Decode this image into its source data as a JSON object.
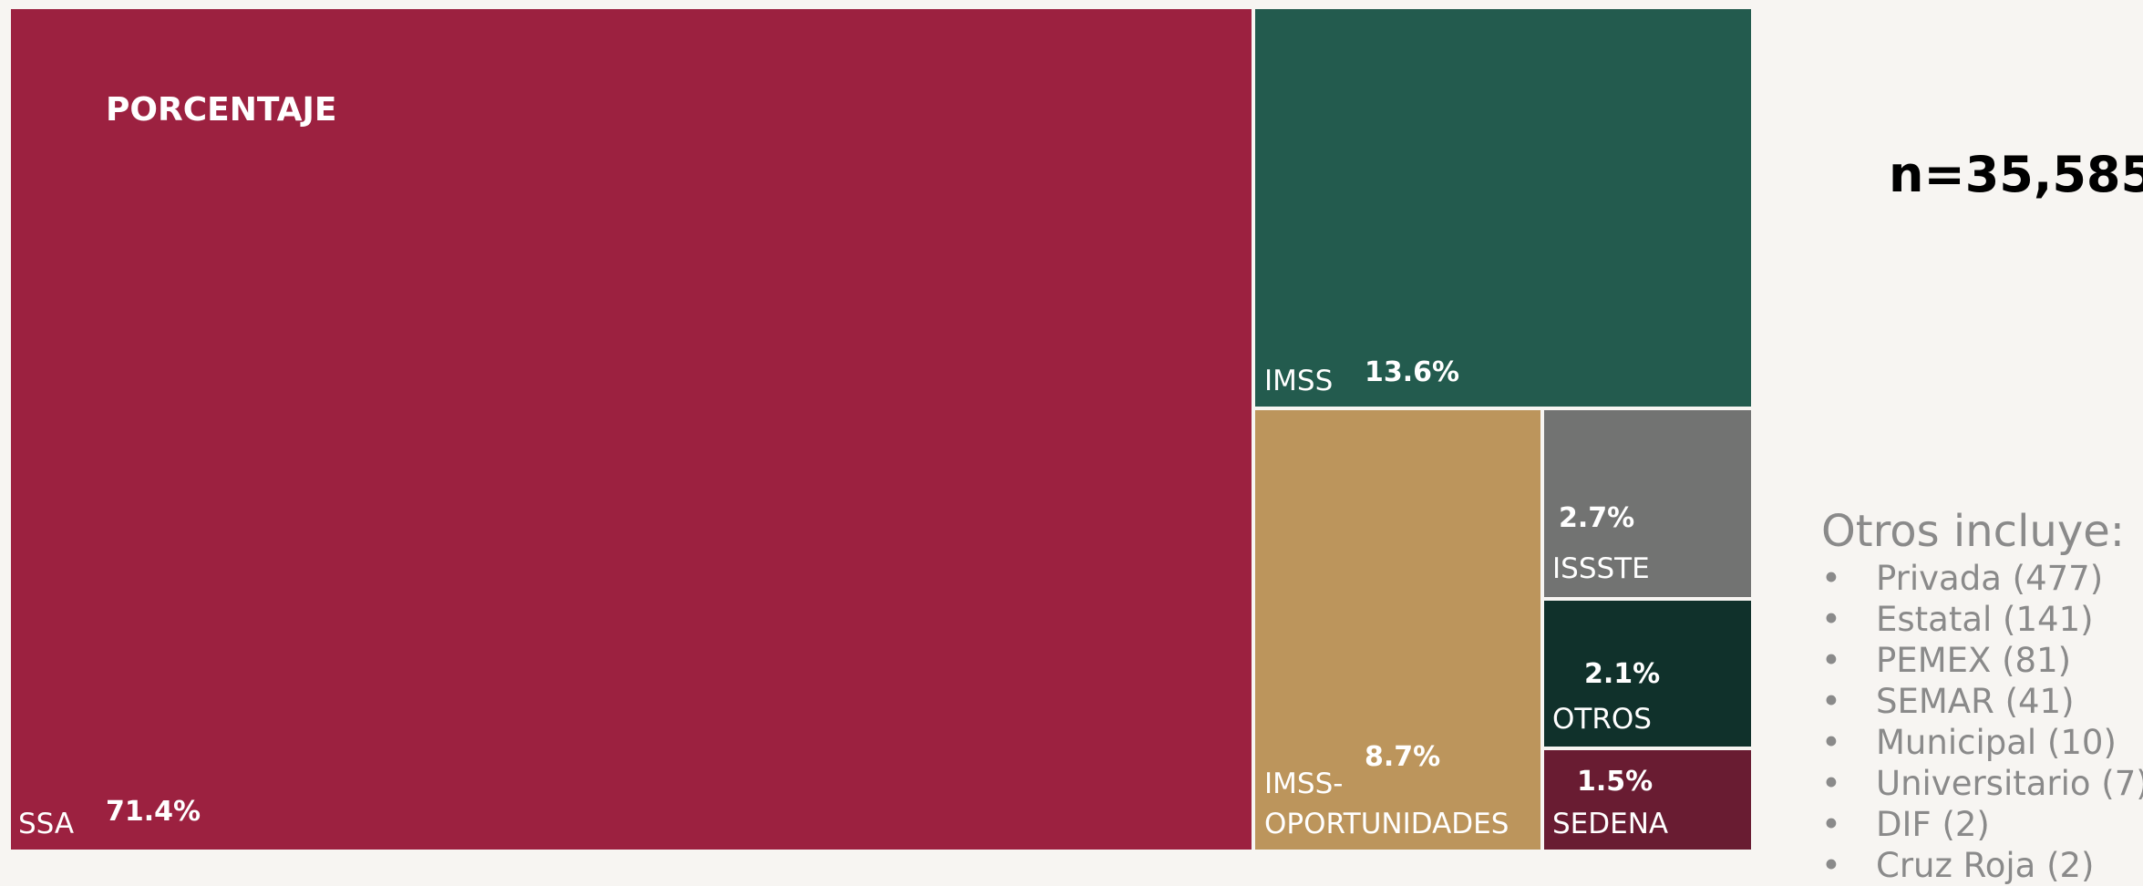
{
  "chart_data": {
    "type": "treemap",
    "title": "PORCENTAJE",
    "items": [
      {
        "label": "SSA",
        "value": 71.4,
        "value_label": "71.4%",
        "color": "#9c2140"
      },
      {
        "label": "IMSS",
        "value": 13.6,
        "value_label": "13.6%",
        "color": "#235b4e"
      },
      {
        "label": "IMSS-OPORTUNIDADES",
        "label_lines": [
          "IMSS-",
          "OPORTUNIDADES"
        ],
        "value": 8.7,
        "value_label": "8.7%",
        "color": "#bc955c"
      },
      {
        "label": "ISSSTE",
        "value": 2.7,
        "value_label": "2.7%",
        "color": "#727372"
      },
      {
        "label": "OTROS",
        "value": 2.1,
        "value_label": "2.1%",
        "color": "#10312b"
      },
      {
        "label": "SEDENA",
        "value": 1.5,
        "value_label": "1.5%",
        "color": "#691c32"
      }
    ]
  },
  "sidebar": {
    "n_label": "n=35,585",
    "otros_title": "Otros incluye:",
    "bullet": "•",
    "otros_items": [
      "Privada (477)",
      "Estatal (141)",
      "PEMEX (81)",
      "SEMAR (41)",
      "Municipal (10)",
      "Universitario (7)",
      "DIF (2)",
      "Cruz Roja (2)"
    ]
  }
}
